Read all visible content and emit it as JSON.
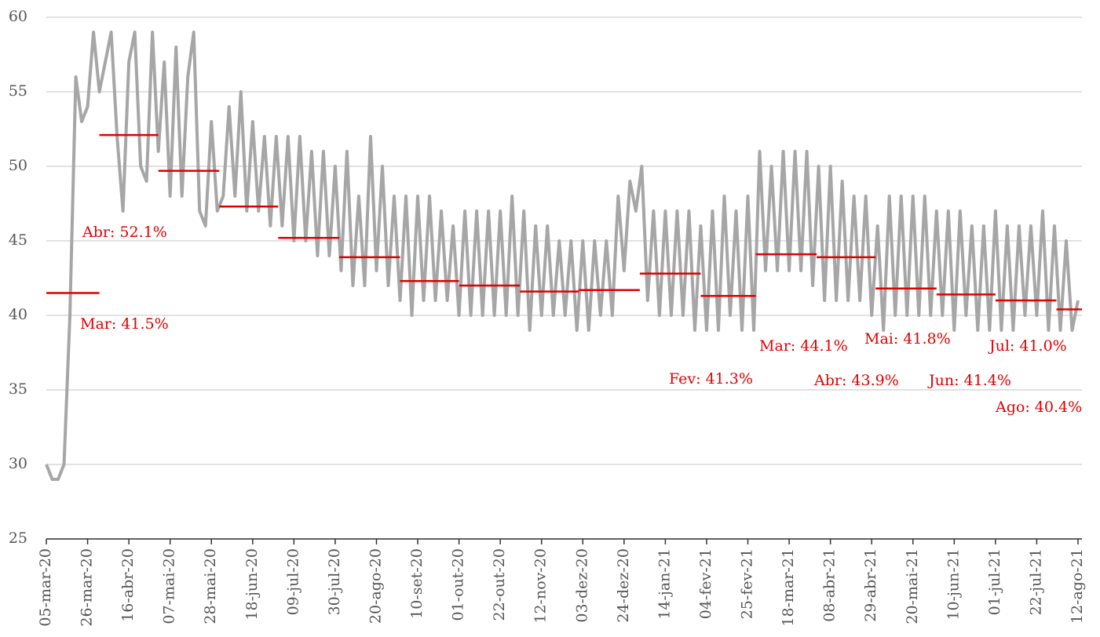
{
  "chart_data": {
    "type": "line",
    "x": [
      0,
      3,
      6,
      9,
      12,
      15,
      18,
      21,
      24,
      27,
      30,
      33,
      36,
      39,
      42,
      45,
      48,
      51,
      54,
      57,
      60,
      63,
      66,
      69,
      72,
      75,
      78,
      81,
      84,
      87,
      90,
      93,
      96,
      99,
      102,
      105,
      108,
      111,
      114,
      117,
      120,
      123,
      126,
      129,
      132,
      135,
      138,
      141,
      144,
      147,
      150,
      153,
      156,
      159,
      162,
      165,
      168,
      171,
      174,
      177,
      180,
      183,
      186,
      189,
      192,
      195,
      198,
      201,
      204,
      207,
      210,
      213,
      216,
      219,
      222,
      225,
      228,
      231,
      234,
      237,
      240,
      243,
      246,
      249,
      252,
      255,
      258,
      261,
      264,
      267,
      270,
      273,
      276,
      279,
      282,
      285,
      288,
      291,
      294,
      297,
      300,
      303,
      306,
      309,
      312,
      315,
      318,
      321,
      324,
      327,
      330,
      333,
      336,
      339,
      342,
      345,
      348,
      351,
      354,
      357,
      360,
      363,
      366,
      369,
      372,
      375,
      378,
      381,
      384,
      387,
      390,
      393,
      396,
      399,
      402,
      405,
      408,
      411,
      414,
      417,
      420,
      423,
      426,
      429,
      432,
      435,
      438,
      441,
      444,
      447,
      450,
      453,
      456,
      459,
      462,
      465,
      468,
      471,
      474,
      477,
      480,
      483,
      486,
      489,
      492,
      495,
      498,
      501,
      504,
      507,
      510,
      513,
      516,
      519,
      522,
      525
    ],
    "series": [
      {
        "color": "#a6a6a6",
        "values": [
          30,
          29,
          29,
          30,
          40,
          56,
          53,
          54,
          59,
          55,
          57,
          59,
          52,
          47,
          57,
          59,
          50,
          49,
          59,
          51,
          57,
          48,
          58,
          48,
          56,
          59,
          47,
          46,
          53,
          47,
          48,
          54,
          48,
          55,
          47,
          53,
          47,
          52,
          46,
          52,
          46,
          52,
          45,
          52,
          45,
          51,
          44,
          51,
          44,
          50,
          43,
          51,
          42,
          48,
          42,
          52,
          43,
          50,
          42,
          48,
          41,
          48,
          40,
          48,
          41,
          48,
          41,
          47,
          41,
          46,
          40,
          47,
          40,
          47,
          40,
          47,
          40,
          47,
          40,
          48,
          40,
          47,
          39,
          46,
          40,
          46,
          40,
          45,
          40,
          45,
          39,
          45,
          39,
          45,
          40,
          45,
          40,
          48,
          43,
          49,
          47,
          50,
          41,
          47,
          40,
          47,
          40,
          47,
          40,
          47,
          39,
          46,
          39,
          47,
          39,
          48,
          40,
          47,
          39,
          48,
          39,
          51,
          43,
          50,
          43,
          51,
          43,
          51,
          43,
          51,
          42,
          50,
          41,
          50,
          41,
          49,
          41,
          48,
          41,
          48,
          40,
          46,
          39,
          48,
          40,
          48,
          40,
          48,
          40,
          48,
          40,
          47,
          40,
          47,
          39,
          47,
          40,
          46,
          39,
          46,
          39,
          47,
          39,
          46,
          39,
          46,
          40,
          46,
          40,
          47,
          39,
          46,
          39,
          45,
          39,
          41
        ]
      }
    ],
    "averages": {
      "color": "#e00000",
      "segments": [
        {
          "x": [
            0,
            27
          ],
          "value": 41.5,
          "label": "Mar: 41.5%"
        },
        {
          "x": [
            27,
            57
          ],
          "value": 52.1,
          "label": "Abr: 52.1%"
        },
        {
          "x": [
            57,
            88
          ],
          "value": 49.7
        },
        {
          "x": [
            88,
            118
          ],
          "value": 47.3
        },
        {
          "x": [
            118,
            149
          ],
          "value": 45.2
        },
        {
          "x": [
            149,
            180
          ],
          "value": 43.9
        },
        {
          "x": [
            180,
            210
          ],
          "value": 42.3
        },
        {
          "x": [
            210,
            241
          ],
          "value": 42.0
        },
        {
          "x": [
            241,
            271
          ],
          "value": 41.6
        },
        {
          "x": [
            271,
            302
          ],
          "value": 41.7
        },
        {
          "x": [
            302,
            333
          ],
          "value": 42.8
        },
        {
          "x": [
            333,
            361
          ],
          "value": 41.3,
          "label": "Fev: 41.3%"
        },
        {
          "x": [
            361,
            392
          ],
          "value": 44.1,
          "label": "Mar: 44.1%"
        },
        {
          "x": [
            392,
            422
          ],
          "value": 43.9,
          "label": "Abr: 43.9%"
        },
        {
          "x": [
            422,
            453
          ],
          "value": 41.8,
          "label": "Mai: 41.8%"
        },
        {
          "x": [
            453,
            483
          ],
          "value": 41.4,
          "label": "Jun: 41.4%"
        },
        {
          "x": [
            483,
            514
          ],
          "value": 41.0,
          "label": "Jul: 41.0%"
        },
        {
          "x": [
            514,
            527
          ],
          "value": 40.4,
          "label": "Ago: 40.4%"
        }
      ]
    },
    "xlim": [
      0,
      527
    ],
    "xticks": [
      {
        "value": 0,
        "label": "05-mar-20"
      },
      {
        "value": 21,
        "label": "26-mar-20"
      },
      {
        "value": 42,
        "label": "16-abr-20"
      },
      {
        "value": 63,
        "label": "07-mai-20"
      },
      {
        "value": 84,
        "label": "28-mai-20"
      },
      {
        "value": 105,
        "label": "18-jun-20"
      },
      {
        "value": 126,
        "label": "09-jul-20"
      },
      {
        "value": 147,
        "label": "30-jul-20"
      },
      {
        "value": 168,
        "label": "20-ago-20"
      },
      {
        "value": 189,
        "label": "10-set-20"
      },
      {
        "value": 210,
        "label": "01-out-20"
      },
      {
        "value": 231,
        "label": "22-out-20"
      },
      {
        "value": 252,
        "label": "12-nov-20"
      },
      {
        "value": 273,
        "label": "03-dez-20"
      },
      {
        "value": 294,
        "label": "24-dez-20"
      },
      {
        "value": 315,
        "label": "14-jan-21"
      },
      {
        "value": 336,
        "label": "04-fev-21"
      },
      {
        "value": 357,
        "label": "25-fev-21"
      },
      {
        "value": 378,
        "label": "18-mar-21"
      },
      {
        "value": 399,
        "label": "08-abr-21"
      },
      {
        "value": 420,
        "label": "29-abr-21"
      },
      {
        "value": 441,
        "label": "20-mai-21"
      },
      {
        "value": 462,
        "label": "10-jun-21"
      },
      {
        "value": 483,
        "label": "01-jul-21"
      },
      {
        "value": 504,
        "label": "22-jul-21"
      },
      {
        "value": 525,
        "label": "12-ago-21"
      }
    ],
    "ylim": [
      25,
      60
    ],
    "yticks": [
      25,
      30,
      35,
      40,
      45,
      50,
      55,
      60
    ],
    "grid": true
  }
}
